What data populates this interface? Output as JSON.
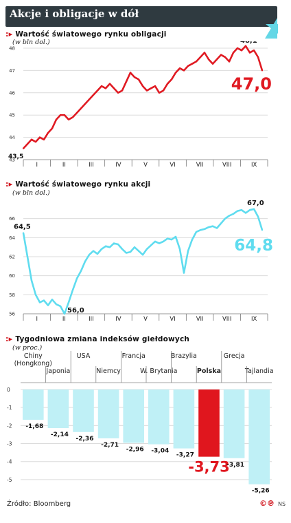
{
  "header": {
    "title": "Akcje i obligacje w dół"
  },
  "bonds": {
    "title": "Wartość światowego rynku obligacji",
    "unit": "(w bln dol.)"
  },
  "stocks": {
    "title": "Wartość światowego rynku akcji",
    "unit": "(w bln dol.)"
  },
  "weekly": {
    "title": "Tygodniowa zmiana indeksów giełdowych",
    "unit": "(w proc.)"
  },
  "footer": {
    "source": "Źródło: Bloomberg",
    "author": "NS"
  },
  "colors": {
    "bond_line": "#e01a22",
    "stock_line": "#5fdcef",
    "bar_default": "#bff0f6",
    "bar_highlight": "#e0161e",
    "grid": "#dcdcdc",
    "header_bg": "#2f3a40"
  },
  "chart_data": [
    {
      "type": "line",
      "id": "bonds",
      "title": "Wartość światowego rynku obligacji",
      "ylabel": "(w bln dol.)",
      "ylim": [
        43,
        48
      ],
      "yticks": [
        "43",
        "44",
        "45",
        "46",
        "47",
        "48"
      ],
      "x_categories": [
        "I",
        "II",
        "III",
        "IV",
        "V",
        "VI",
        "VII",
        "VIII",
        "IX"
      ],
      "series": [
        {
          "values": [
            43.5,
            43.7,
            43.9,
            43.8,
            44.0,
            43.9,
            44.2,
            44.4,
            44.8,
            45.0,
            45.0,
            44.8,
            44.9,
            45.1,
            45.3,
            45.5,
            45.7,
            45.9,
            46.1,
            46.3,
            46.2,
            46.4,
            46.2,
            46.0,
            46.1,
            46.5,
            46.9,
            46.7,
            46.6,
            46.3,
            46.1,
            46.2,
            46.3,
            46.0,
            46.1,
            46.4,
            46.6,
            46.9,
            47.1,
            47.0,
            47.2,
            47.3,
            47.4,
            47.6,
            47.8,
            47.5,
            47.3,
            47.5,
            47.7,
            47.6,
            47.4,
            47.8,
            48.0,
            47.9,
            48.1,
            47.8,
            47.9,
            47.6,
            47.0
          ],
          "start": "43,5",
          "peak": "48,1",
          "last": "47,0"
        }
      ]
    },
    {
      "type": "line",
      "id": "stocks",
      "title": "Wartość światowego rynku akcji",
      "ylabel": "(w bln dol.)",
      "ylim": [
        56,
        68
      ],
      "yticks": [
        "56",
        "58",
        "60",
        "62",
        "64",
        "66"
      ],
      "x_categories": [
        "I",
        "II",
        "III",
        "IV",
        "V",
        "VI",
        "VII",
        "VIII",
        "IX"
      ],
      "series": [
        {
          "values": [
            64.5,
            62.0,
            59.5,
            58.0,
            57.2,
            57.4,
            56.9,
            57.5,
            57.0,
            56.8,
            56.0,
            57.2,
            58.5,
            59.7,
            60.5,
            61.5,
            62.2,
            62.6,
            62.3,
            62.8,
            63.1,
            63.0,
            63.4,
            63.3,
            62.8,
            62.4,
            62.5,
            63.0,
            62.6,
            62.2,
            62.8,
            63.2,
            63.6,
            63.4,
            63.6,
            63.9,
            63.8,
            64.1,
            62.8,
            60.3,
            62.6,
            63.8,
            64.6,
            64.8,
            64.9,
            65.1,
            65.2,
            65.0,
            65.5,
            66.0,
            66.3,
            66.5,
            66.8,
            66.9,
            66.6,
            66.9,
            67.0,
            66.2,
            64.8
          ],
          "start": "64,5",
          "low": "56,0",
          "peak": "67,0",
          "last": "64,8"
        }
      ]
    },
    {
      "type": "bar",
      "id": "weekly",
      "title": "Tygodniowa zmiana indeksów giełdowych",
      "ylabel": "(w proc.)",
      "ylim": [
        -5.5,
        0
      ],
      "yticks": [
        "0",
        "-1",
        "-2",
        "-3",
        "-4",
        "-5"
      ],
      "categories": [
        "Chiny (Hongkong)",
        "Japonia",
        "USA",
        "Niemcy",
        "Francja",
        "W. Brytania",
        "Brazylia",
        "Polska",
        "Grecja",
        "Tajlandia"
      ],
      "values": [
        -1.68,
        -2.14,
        -2.36,
        -2.71,
        -2.96,
        -3.04,
        -3.27,
        -3.73,
        -3.81,
        -5.26
      ],
      "value_labels": [
        "-1,68",
        "-2,14",
        "-2,36",
        "-2,71",
        "-2,96",
        "-3,04",
        "-3,27",
        "-3,73",
        "-3,81",
        "-5,26"
      ],
      "highlight": "Polska",
      "label_rows": [
        [
          "Chiny",
          "(Hongkong)"
        ],
        [
          "Japonia"
        ],
        [
          "USA"
        ],
        [
          "Niemcy"
        ],
        [
          "Francja"
        ],
        [
          "W. Brytania"
        ],
        [
          "Brazylia"
        ],
        [
          "Polska"
        ],
        [
          "Grecja"
        ],
        [
          "Tajlandia"
        ]
      ]
    }
  ]
}
